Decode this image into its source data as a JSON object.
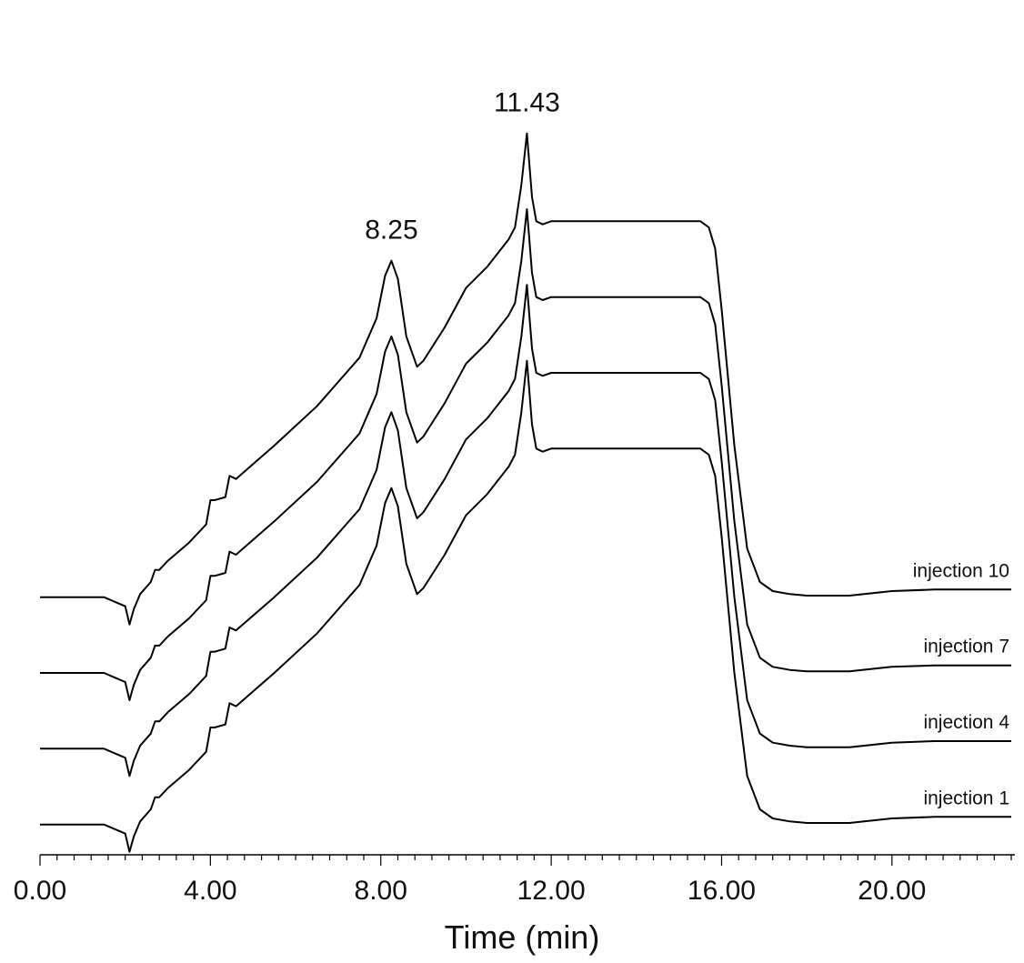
{
  "chart_data": {
    "type": "line",
    "title": "",
    "xlabel": "Time (min)",
    "ylabel": "",
    "xlim": [
      0,
      22.8
    ],
    "ylim": [
      -1,
      26
    ],
    "x_ticks": [
      "0.00",
      "4.00",
      "8.00",
      "12.00",
      "16.00",
      "20.00"
    ],
    "x_tick_values": [
      0,
      4,
      8,
      12,
      16,
      20
    ],
    "minor_tick_step": 0.4,
    "y_axis_shown": false,
    "grid": false,
    "legend": "none (series labelled directly at right end of each trace)",
    "baseline_offset_between_injections": 2.5,
    "annotations": [
      {
        "text": "8.25",
        "x": 8.25
      },
      {
        "text": "11.43",
        "x": 11.43
      }
    ],
    "series": [
      {
        "name": "injection 1",
        "offset": 0,
        "x": [
          0.0,
          1.5,
          2.0,
          2.1,
          2.2,
          2.35,
          2.6,
          2.7,
          2.8,
          3.0,
          3.5,
          3.9,
          4.0,
          4.1,
          4.35,
          4.45,
          4.6,
          5.5,
          6.5,
          7.5,
          7.9,
          8.1,
          8.25,
          8.4,
          8.6,
          8.85,
          9.0,
          9.5,
          10.0,
          10.5,
          11.0,
          11.15,
          11.3,
          11.43,
          11.55,
          11.65,
          11.8,
          12.0,
          12.5,
          14.0,
          15.5,
          15.7,
          15.85,
          16.0,
          16.3,
          16.6,
          16.9,
          17.2,
          17.6,
          18.0,
          19.0,
          20.0,
          21.0,
          22.0,
          22.8
        ],
        "y": [
          0.0,
          0.0,
          -0.3,
          -0.9,
          -0.4,
          0.1,
          0.5,
          0.9,
          0.9,
          1.2,
          1.8,
          2.4,
          3.2,
          3.2,
          3.3,
          4.0,
          3.9,
          5.0,
          6.3,
          7.9,
          9.2,
          10.6,
          11.1,
          10.5,
          8.6,
          7.6,
          7.8,
          8.9,
          10.2,
          10.9,
          11.8,
          12.2,
          13.6,
          15.3,
          13.2,
          12.4,
          12.3,
          12.4,
          12.4,
          12.4,
          12.4,
          12.2,
          11.5,
          9.5,
          5.0,
          1.6,
          0.5,
          0.2,
          0.1,
          0.05,
          0.05,
          0.2,
          0.25,
          0.25,
          0.25
        ]
      },
      {
        "name": "injection 4",
        "offset": 2.5,
        "x": [
          0.0,
          1.5,
          2.0,
          2.1,
          2.2,
          2.35,
          2.6,
          2.7,
          2.8,
          3.0,
          3.5,
          3.9,
          4.0,
          4.1,
          4.35,
          4.45,
          4.6,
          5.5,
          6.5,
          7.5,
          7.9,
          8.1,
          8.25,
          8.4,
          8.6,
          8.85,
          9.0,
          9.5,
          10.0,
          10.5,
          11.0,
          11.15,
          11.3,
          11.43,
          11.55,
          11.65,
          11.8,
          12.0,
          12.5,
          14.0,
          15.5,
          15.7,
          15.85,
          16.0,
          16.3,
          16.6,
          16.9,
          17.2,
          17.6,
          18.0,
          19.0,
          20.0,
          21.0,
          22.0,
          22.8
        ],
        "y": [
          0.0,
          0.0,
          -0.3,
          -0.9,
          -0.4,
          0.1,
          0.5,
          0.9,
          0.9,
          1.2,
          1.8,
          2.4,
          3.2,
          3.2,
          3.3,
          4.0,
          3.9,
          5.0,
          6.3,
          7.9,
          9.2,
          10.6,
          11.1,
          10.5,
          8.6,
          7.6,
          7.8,
          8.9,
          10.2,
          10.9,
          11.8,
          12.2,
          13.6,
          15.3,
          13.2,
          12.4,
          12.3,
          12.4,
          12.4,
          12.4,
          12.4,
          12.2,
          11.5,
          9.5,
          5.0,
          1.6,
          0.5,
          0.2,
          0.1,
          0.05,
          0.05,
          0.2,
          0.25,
          0.25,
          0.25
        ]
      },
      {
        "name": "injection 7",
        "offset": 5.0,
        "x": [
          0.0,
          1.5,
          2.0,
          2.1,
          2.2,
          2.35,
          2.6,
          2.7,
          2.8,
          3.0,
          3.5,
          3.9,
          4.0,
          4.1,
          4.35,
          4.45,
          4.6,
          5.5,
          6.5,
          7.5,
          7.9,
          8.1,
          8.25,
          8.4,
          8.6,
          8.85,
          9.0,
          9.5,
          10.0,
          10.5,
          11.0,
          11.15,
          11.3,
          11.43,
          11.55,
          11.65,
          11.8,
          12.0,
          12.5,
          14.0,
          15.5,
          15.7,
          15.85,
          16.0,
          16.3,
          16.6,
          16.9,
          17.2,
          17.6,
          18.0,
          19.0,
          20.0,
          21.0,
          22.0,
          22.8
        ],
        "y": [
          0.0,
          0.0,
          -0.3,
          -0.9,
          -0.4,
          0.1,
          0.5,
          0.9,
          0.9,
          1.2,
          1.8,
          2.4,
          3.2,
          3.2,
          3.3,
          4.0,
          3.9,
          5.0,
          6.3,
          7.9,
          9.2,
          10.6,
          11.1,
          10.5,
          8.6,
          7.6,
          7.8,
          8.9,
          10.2,
          10.9,
          11.8,
          12.2,
          13.6,
          15.3,
          13.2,
          12.4,
          12.3,
          12.4,
          12.4,
          12.4,
          12.4,
          12.2,
          11.5,
          9.5,
          5.0,
          1.6,
          0.5,
          0.2,
          0.1,
          0.05,
          0.05,
          0.2,
          0.25,
          0.25,
          0.25
        ]
      },
      {
        "name": "injection 10",
        "offset": 7.5,
        "x": [
          0.0,
          1.5,
          2.0,
          2.1,
          2.2,
          2.35,
          2.6,
          2.7,
          2.8,
          3.0,
          3.5,
          3.9,
          4.0,
          4.1,
          4.35,
          4.45,
          4.6,
          5.5,
          6.5,
          7.5,
          7.9,
          8.1,
          8.25,
          8.4,
          8.6,
          8.85,
          9.0,
          9.5,
          10.0,
          10.5,
          11.0,
          11.15,
          11.3,
          11.43,
          11.55,
          11.65,
          11.8,
          12.0,
          12.5,
          14.0,
          15.5,
          15.7,
          15.85,
          16.0,
          16.3,
          16.6,
          16.9,
          17.2,
          17.6,
          18.0,
          19.0,
          20.0,
          21.0,
          22.0,
          22.8
        ],
        "y": [
          0.0,
          0.0,
          -0.3,
          -0.9,
          -0.4,
          0.1,
          0.5,
          0.9,
          0.9,
          1.2,
          1.8,
          2.4,
          3.2,
          3.2,
          3.3,
          4.0,
          3.9,
          5.0,
          6.3,
          7.9,
          9.2,
          10.6,
          11.1,
          10.5,
          8.6,
          7.6,
          7.8,
          8.9,
          10.2,
          10.9,
          11.8,
          12.2,
          13.6,
          15.3,
          13.2,
          12.4,
          12.3,
          12.4,
          12.4,
          12.4,
          12.4,
          12.2,
          11.5,
          9.5,
          5.0,
          1.6,
          0.5,
          0.2,
          0.1,
          0.05,
          0.05,
          0.2,
          0.25,
          0.25,
          0.25
        ]
      }
    ]
  }
}
